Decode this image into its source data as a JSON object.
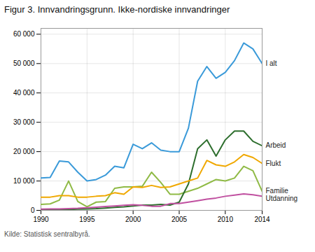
{
  "chart_data": {
    "type": "line",
    "title": "Figur 3. Innvandringsgrunn. Ikke-nordiske innvandringer",
    "source": "Kilde: Statistisk sentralbyrå.",
    "x": [
      1990,
      1991,
      1992,
      1993,
      1994,
      1995,
      1996,
      1997,
      1998,
      1999,
      2000,
      2001,
      2002,
      2003,
      2004,
      2005,
      2006,
      2007,
      2008,
      2009,
      2010,
      2011,
      2012,
      2013,
      2014
    ],
    "series": [
      {
        "name": "I alt",
        "color": "#3a9ad9",
        "values": [
          11000,
          11200,
          16800,
          16500,
          13000,
          10000,
          10500,
          12000,
          15000,
          14500,
          22500,
          21000,
          23000,
          20500,
          20000,
          20000,
          28000,
          44000,
          49000,
          45000,
          47000,
          51000,
          57000,
          55000,
          50000
        ]
      },
      {
        "name": "Familie",
        "color": "#8fba45",
        "values": [
          2000,
          2200,
          3500,
          10000,
          3000,
          1200,
          2800,
          3000,
          7500,
          8000,
          8000,
          8200,
          13000,
          9500,
          5500,
          5500,
          6500,
          7500,
          9000,
          10500,
          10000,
          11000,
          15000,
          13500,
          6500
        ]
      },
      {
        "name": "Arbeid",
        "color": "#2d6e2d",
        "values": [
          300,
          300,
          300,
          300,
          400,
          500,
          600,
          800,
          1000,
          1200,
          1500,
          1800,
          1800,
          2000,
          1800,
          2800,
          9000,
          21000,
          24000,
          18500,
          24000,
          27000,
          27000,
          23500,
          22000
        ]
      },
      {
        "name": "Flukt",
        "color": "#f0a800",
        "values": [
          4500,
          4500,
          5000,
          5000,
          4500,
          4500,
          4800,
          5000,
          6000,
          5500,
          8000,
          7800,
          8500,
          7800,
          8000,
          9000,
          10000,
          11000,
          17000,
          15500,
          15000,
          16500,
          19000,
          18000,
          16000
        ]
      },
      {
        "name": "Utdanning",
        "color": "#c050a0",
        "values": [
          400,
          450,
          500,
          600,
          700,
          900,
          1100,
          1300,
          1500,
          1700,
          1900,
          1700,
          1400,
          1400,
          2300,
          2300,
          2800,
          3300,
          3800,
          4200,
          4800,
          5200,
          5600,
          5300,
          4800
        ]
      }
    ],
    "xlim": [
      1990,
      2014
    ],
    "xticks": [
      1990,
      1995,
      2000,
      2005,
      2010,
      2014
    ],
    "ylim": [
      0,
      62000
    ],
    "yticks": [
      0,
      {
        "value": 10000,
        "label": "10 000"
      },
      {
        "value": 20000,
        "label": "20 000"
      },
      {
        "value": 30000,
        "label": "30 000"
      },
      {
        "value": 40000,
        "label": "40 000"
      },
      {
        "value": 50000,
        "label": "50 000"
      },
      {
        "value": 60000,
        "label": "60 000"
      }
    ],
    "grid": true
  }
}
